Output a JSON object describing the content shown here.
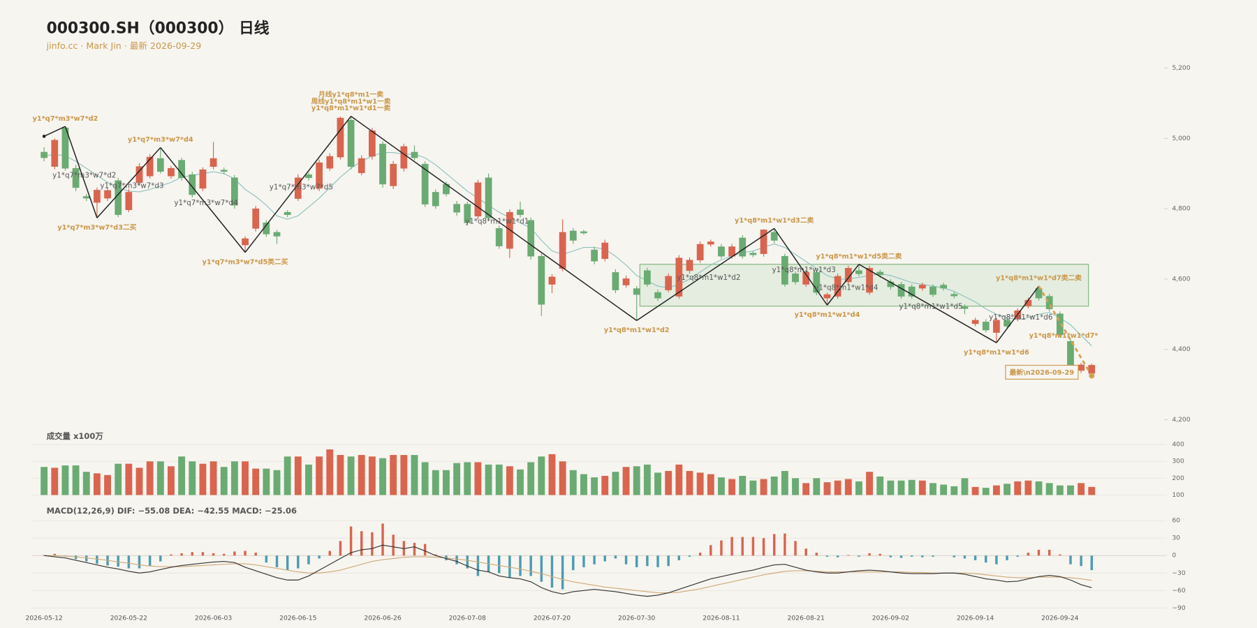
{
  "chart_data": [
    {
      "type": "candlestick",
      "title": "000300.SH（000300） 日线",
      "subtitle": "jinfo.cc · Mark Jin · 最新 2026-09-29",
      "colors": {
        "up": "#d9654f",
        "down": "#6aab73"
      },
      "ylim": [
        4200,
        5200
      ],
      "yticks": [
        {
          "value": 4200,
          "label": "4,200"
        },
        {
          "value": 4400,
          "label": "4,400"
        },
        {
          "value": 4600,
          "label": "4,600"
        },
        {
          "value": 4800,
          "label": "4,800"
        },
        {
          "value": 5000,
          "label": "5,000"
        },
        {
          "value": 5200,
          "label": "5,200"
        }
      ],
      "grid": false,
      "open": [
        4961,
        4920,
        5030,
        4915,
        4835,
        4818,
        4830,
        4880,
        4797,
        4874,
        4893,
        4943,
        4893,
        4938,
        4897,
        4858,
        4920,
        4910,
        4888,
        4697,
        4744,
        4760,
        4733,
        4790,
        4829,
        4897,
        4858,
        4915,
        4947,
        5052,
        4902,
        4949,
        4984,
        4865,
        4915,
        4961,
        4927,
        4847,
        4870,
        4813,
        4813,
        4779,
        4888,
        4744,
        4687,
        4797,
        4767,
        4665,
        4585,
        4630,
        4737,
        4735,
        4683,
        4658,
        4619,
        4583,
        4573,
        4624,
        4562,
        4569,
        4551,
        4624,
        4654,
        4699,
        4692,
        4665,
        4717,
        4674,
        4672,
        4733,
        4665,
        4615,
        4585,
        4619,
        4546,
        4551,
        4592,
        4624,
        4562,
        4620,
        4592,
        4585,
        4578,
        4574,
        4578,
        4583,
        4557,
        4521,
        4473,
        4478,
        4448,
        4483,
        4487,
        4524,
        4573,
        4551,
        4501,
        4423,
        4340,
        4332
      ],
      "high": [
        4975,
        5000,
        5034,
        4925,
        4842,
        4860,
        4860,
        4888,
        4856,
        4930,
        4955,
        4974,
        4922,
        4945,
        4905,
        4918,
        4990,
        4917,
        4896,
        4722,
        4808,
        4768,
        4740,
        4796,
        4898,
        4903,
        4940,
        4958,
        5062,
        5063,
        4952,
        5030,
        4992,
        4936,
        4985,
        4980,
        4935,
        4855,
        4878,
        4822,
        4820,
        4882,
        4900,
        4752,
        4798,
        4820,
        4775,
        4672,
        4614,
        4770,
        4745,
        4740,
        4692,
        4712,
        4628,
        4610,
        4580,
        4632,
        4570,
        4616,
        4668,
        4662,
        4707,
        4712,
        4700,
        4700,
        4725,
        4680,
        4742,
        4744,
        4672,
        4622,
        4626,
        4626,
        4562,
        4616,
        4638,
        4642,
        4638,
        4627,
        4600,
        4592,
        4585,
        4590,
        4585,
        4590,
        4564,
        4528,
        4490,
        4486,
        4490,
        4490,
        4517,
        4547,
        4580,
        4558,
        4508,
        4430,
        4362,
        4360
      ],
      "low": [
        4935,
        4912,
        4908,
        4850,
        4822,
        4774,
        4822,
        4776,
        4790,
        4866,
        4886,
        4900,
        4885,
        4880,
        4832,
        4850,
        4912,
        4898,
        4800,
        4676,
        4735,
        4720,
        4700,
        4776,
        4822,
        4880,
        4850,
        4908,
        4940,
        4912,
        4895,
        4940,
        4860,
        4856,
        4906,
        4938,
        4805,
        4800,
        4835,
        4780,
        4752,
        4770,
        4766,
        4686,
        4660,
        4775,
        4655,
        4495,
        4560,
        4622,
        4700,
        4726,
        4642,
        4650,
        4560,
        4576,
        4482,
        4578,
        4538,
        4562,
        4544,
        4616,
        4646,
        4692,
        4658,
        4658,
        4658,
        4662,
        4664,
        4702,
        4578,
        4584,
        4578,
        4554,
        4526,
        4544,
        4585,
        4608,
        4555,
        4604,
        4570,
        4544,
        4544,
        4567,
        4549,
        4567,
        4545,
        4500,
        4466,
        4448,
        4419,
        4458,
        4480,
        4517,
        4539,
        4508,
        4434,
        4326,
        4333,
        4325
      ],
      "close": [
        4945,
        4995,
        4915,
        4860,
        4830,
        4853,
        4852,
        4783,
        4847,
        4920,
        4947,
        4906,
        4915,
        4888,
        4840,
        4911,
        4943,
        4906,
        4810,
        4715,
        4800,
        4728,
        4722,
        4783,
        4888,
        4888,
        4931,
        4949,
        5058,
        4920,
        4943,
        5022,
        4870,
        4927,
        4977,
        4945,
        4813,
        4808,
        4842,
        4790,
        4760,
        4874,
        4774,
        4694,
        4790,
        4783,
        4665,
        4528,
        4606,
        4733,
        4710,
        4731,
        4651,
        4703,
        4569,
        4601,
        4556,
        4585,
        4546,
        4608,
        4660,
        4654,
        4699,
        4706,
        4665,
        4692,
        4665,
        4669,
        4740,
        4710,
        4585,
        4592,
        4619,
        4562,
        4556,
        4608,
        4631,
        4615,
        4631,
        4612,
        4578,
        4551,
        4551,
        4583,
        4556,
        4574,
        4552,
        4516,
        4483,
        4455,
        4483,
        4466,
        4510,
        4540,
        4546,
        4515,
        4441,
        4334,
        4356,
        4355
      ],
      "ma": {
        "color": "#8cc2bf",
        "values": [
          4950,
          4955,
          4950,
          4935,
          4915,
          4895,
          4875,
          4860,
          4850,
          4848,
          4855,
          4865,
          4875,
          4890,
          4895,
          4900,
          4905,
          4900,
          4885,
          4855,
          4835,
          4810,
          4780,
          4770,
          4780,
          4805,
          4830,
          4860,
          4890,
          4915,
          4935,
          4950,
          4960,
          4960,
          4955,
          4955,
          4945,
          4925,
          4900,
          4875,
          4850,
          4830,
          4810,
          4790,
          4775,
          4760,
          4745,
          4710,
          4680,
          4670,
          4680,
          4690,
          4690,
          4685,
          4665,
          4640,
          4610,
          4595,
          4580,
          4575,
          4585,
          4600,
          4620,
          4640,
          4655,
          4665,
          4675,
          4680,
          4690,
          4700,
          4690,
          4670,
          4650,
          4630,
          4610,
          4600,
          4600,
          4605,
          4610,
          4615,
          4610,
          4600,
          4590,
          4585,
          4580,
          4575,
          4565,
          4550,
          4535,
          4515,
          4500,
          4490,
          4485,
          4490,
          4500,
          4505,
          4490,
          4470,
          4440,
          4410
        ]
      },
      "zone": {
        "start": 56,
        "end": 99,
        "low": 4523,
        "high": 4642,
        "fill": "#dfeadb",
        "stroke": "#7fb57d"
      },
      "zigzag": {
        "color": "#222222",
        "last_color": "#d3a252",
        "label_color": "#c9974a",
        "segment_label_color": "#555555",
        "index": [
          0,
          2,
          5,
          11,
          19,
          29,
          56,
          69,
          74,
          77,
          90,
          94,
          99
        ],
        "values": [
          5006,
          5034,
          4774,
          4974,
          4676,
          5063,
          4482,
          4744,
          4526,
          4642,
          4419,
          4580,
          4325
        ],
        "labels": [
          null,
          "y1*q7*m3*w7*d2",
          "y1*q7*m3*w7*d3二买",
          "y1*q7*m3*w7*d4",
          "y1*q7*m3*w7*d5类二买",
          [
            "月线y1*q8*m1一卖",
            "周线y1*q8*m1*w1一卖",
            "y1*q8*m1*w1*d1一卖"
          ],
          "y1*q8*m1*w1*d2",
          "y1*q8*m1*w1*d3二卖",
          "y1*q8*m1*w1*d4",
          "y1*q8*m1*w1*d5类二卖",
          "y1*q8*m1*w1*d6",
          "y1*q8*m1*w1*d7类二卖",
          "y1*q8*m1*w1*d7*"
        ],
        "segment_labels": [
          null,
          "y1*q7*m3*w7*d2",
          "y1*q7*m3*w7*d3",
          "y1*q7*m3*w7*d4",
          "y1*q7*m3*w7*d5",
          "y1*q8*m1*w1*d1",
          "y1*q8*m1*w1*d2",
          "y1*q8*m1*w1*d3",
          "y1*q8*m1*w1*d4",
          "y1*q8*m1*w1*d5",
          "y1*q8*m1*w1*d6",
          null
        ],
        "latest_label": "最新\\n2026-09-29"
      }
    },
    {
      "type": "bar",
      "title": "成交量 x100万",
      "ylim": [
        100,
        400
      ],
      "yticks": [
        100,
        200,
        300,
        400
      ],
      "grid": true,
      "values": [
        267,
        262,
        276,
        276,
        238,
        229,
        219,
        286,
        286,
        262,
        300,
        300,
        271,
        329,
        300,
        286,
        300,
        267,
        300,
        300,
        257,
        257,
        248,
        329,
        329,
        281,
        329,
        371,
        338,
        329,
        338,
        329,
        319,
        338,
        338,
        338,
        295,
        248,
        248,
        290,
        295,
        295,
        281,
        281,
        271,
        252,
        295,
        329,
        343,
        300,
        248,
        224,
        205,
        214,
        238,
        267,
        271,
        281,
        233,
        243,
        281,
        243,
        233,
        224,
        205,
        195,
        214,
        186,
        195,
        210,
        243,
        200,
        171,
        200,
        176,
        186,
        195,
        181,
        238,
        210,
        186,
        186,
        190,
        186,
        171,
        162,
        152,
        200,
        148,
        143,
        157,
        167,
        181,
        186,
        181,
        171,
        157,
        157,
        171,
        148
      ]
    },
    {
      "type": "macd",
      "title": "MACD(12,26,9) DIF: −55.08 DEA: −42.55 MACD: −25.06",
      "ylim": [
        -90,
        60
      ],
      "yticks": [
        {
          "value": -90,
          "label": "−90"
        },
        {
          "value": -60,
          "label": "−60"
        },
        {
          "value": -30,
          "label": "−30"
        },
        0,
        30,
        60
      ],
      "grid": true,
      "colors": {
        "pos": "#d9654f",
        "neg": "#4c9cb0"
      },
      "categories": [
        "2026-05-12",
        null,
        null,
        null,
        null,
        null,
        null,
        null,
        "2026-05-22",
        null,
        null,
        null,
        null,
        null,
        null,
        null,
        "2026-06-03",
        null,
        null,
        null,
        null,
        null,
        null,
        null,
        "2026-06-15",
        null,
        null,
        null,
        null,
        null,
        null,
        null,
        "2026-06-26",
        null,
        null,
        null,
        null,
        null,
        null,
        null,
        "2026-07-08",
        null,
        null,
        null,
        null,
        null,
        null,
        null,
        "2026-07-20",
        null,
        null,
        null,
        null,
        null,
        null,
        null,
        "2026-07-30",
        null,
        null,
        null,
        null,
        null,
        null,
        null,
        "2026-08-11",
        null,
        null,
        null,
        null,
        null,
        null,
        null,
        "2026-08-21",
        null,
        null,
        null,
        null,
        null,
        null,
        null,
        "2026-09-02",
        null,
        null,
        null,
        null,
        null,
        null,
        null,
        "2026-09-14",
        null,
        null,
        null,
        null,
        null,
        null,
        null,
        "2026-09-24",
        null,
        null,
        null
      ],
      "values": [
        1,
        3,
        -1,
        -6,
        -10,
        -14,
        -17,
        -19,
        -22,
        -22,
        -18,
        -10,
        2,
        4,
        6,
        6,
        4,
        3,
        7,
        8,
        5,
        -12,
        -20,
        -25,
        -22,
        -15,
        -5,
        8,
        25,
        50,
        42,
        40,
        55,
        36,
        25,
        22,
        20,
        2,
        -8,
        -15,
        -22,
        -35,
        -28,
        -30,
        -38,
        -35,
        -35,
        -45,
        -55,
        -58,
        -25,
        -20,
        -15,
        -10,
        -5,
        -15,
        -20,
        -18,
        -20,
        -18,
        -8,
        -2,
        5,
        18,
        26,
        32,
        32,
        32,
        30,
        37,
        38,
        25,
        12,
        5,
        -2,
        -3,
        1,
        -2,
        4,
        3,
        -3,
        -4,
        -2,
        -3,
        -2,
        0,
        -3,
        -5,
        -8,
        -12,
        -15,
        -8,
        -2,
        5,
        10,
        10,
        2,
        -15,
        -18,
        -25.06
      ],
      "dif": {
        "color": "#333333",
        "values": [
          0,
          -2,
          -4,
          -8,
          -12,
          -16,
          -20,
          -23,
          -27,
          -30,
          -28,
          -24,
          -20,
          -17,
          -15,
          -13,
          -11,
          -10,
          -12,
          -20,
          -26,
          -32,
          -38,
          -42,
          -42,
          -35,
          -25,
          -15,
          -5,
          5,
          10,
          12,
          18,
          15,
          12,
          15,
          8,
          0,
          -5,
          -10,
          -18,
          -25,
          -28,
          -35,
          -38,
          -40,
          -45,
          -55,
          -62,
          -66,
          -62,
          -60,
          -58,
          -60,
          -62,
          -65,
          -68,
          -70,
          -68,
          -64,
          -58,
          -52,
          -46,
          -40,
          -36,
          -32,
          -28,
          -25,
          -20,
          -16,
          -15,
          -20,
          -25,
          -28,
          -30,
          -30,
          -28,
          -26,
          -25,
          -26,
          -28,
          -30,
          -31,
          -31,
          -31,
          -30,
          -30,
          -32,
          -36,
          -40,
          -42,
          -45,
          -44,
          -40,
          -36,
          -34,
          -36,
          -42,
          -50,
          -55.08
        ]
      },
      "dea": {
        "color": "#d0aa78",
        "values": [
          0,
          0,
          -1,
          -2,
          -4,
          -6,
          -8,
          -11,
          -13,
          -16,
          -18,
          -19,
          -19,
          -19,
          -18,
          -17,
          -16,
          -15,
          -14,
          -14,
          -16,
          -19,
          -22,
          -25,
          -28,
          -30,
          -30,
          -28,
          -25,
          -20,
          -15,
          -10,
          -7,
          -5,
          -3,
          -2,
          -2,
          -3,
          -4,
          -6,
          -8,
          -11,
          -14,
          -17,
          -20,
          -23,
          -27,
          -31,
          -36,
          -41,
          -45,
          -48,
          -51,
          -54,
          -56,
          -58,
          -60,
          -62,
          -64,
          -64,
          -63,
          -60,
          -57,
          -53,
          -49,
          -45,
          -41,
          -37,
          -33,
          -30,
          -27,
          -26,
          -26,
          -27,
          -28,
          -28,
          -28,
          -28,
          -28,
          -28,
          -28,
          -28,
          -29,
          -29,
          -30,
          -30,
          -30,
          -30,
          -31,
          -33,
          -35,
          -37,
          -38,
          -38,
          -37,
          -37,
          -37,
          -38,
          -40,
          -42.55
        ]
      }
    }
  ]
}
